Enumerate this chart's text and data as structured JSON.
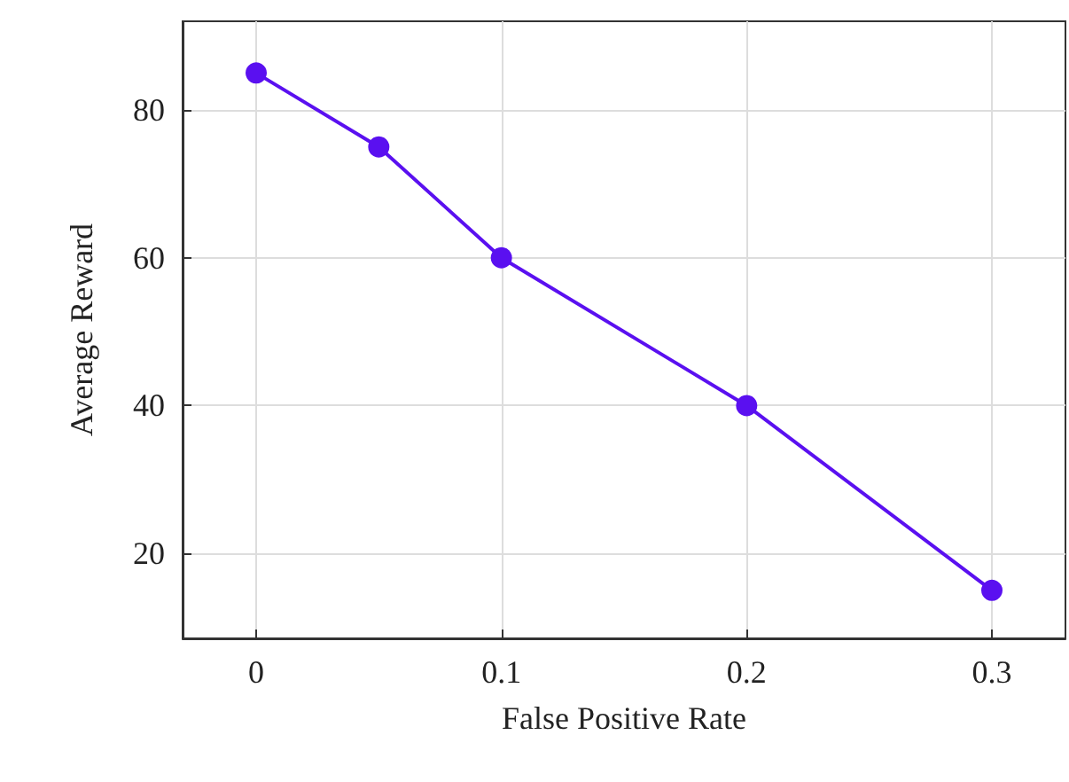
{
  "chart_data": {
    "type": "line",
    "xlabel": "False Positive Rate",
    "ylabel": "Average Reward",
    "x": [
      0,
      0.05,
      0.1,
      0.2,
      0.3
    ],
    "series": [
      {
        "color": "#5a10f0",
        "values": [
          85,
          75,
          60,
          40,
          15
        ]
      }
    ],
    "xlim": [
      -0.03,
      0.33
    ],
    "xticks": [
      0,
      0.1,
      0.2,
      0.3
    ],
    "ylim": [
      8.5,
      92
    ],
    "yticks": [
      20,
      40,
      60,
      80
    ],
    "grid": true,
    "marker": "circle",
    "line_style": "solid"
  }
}
